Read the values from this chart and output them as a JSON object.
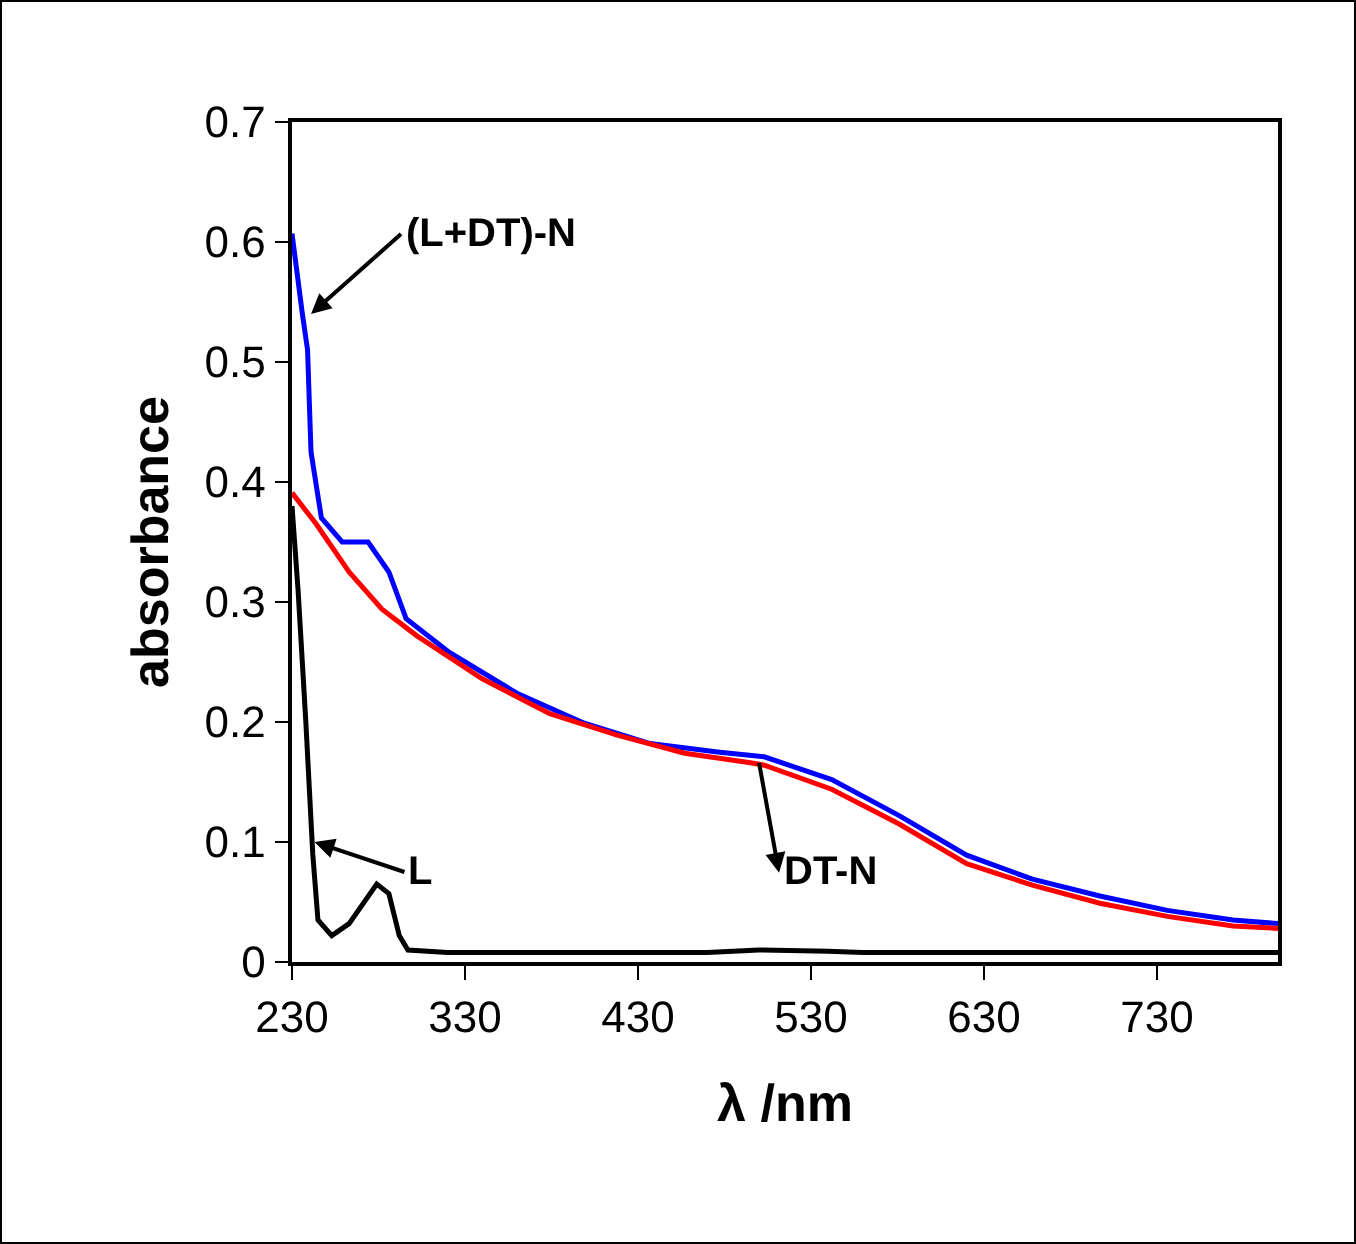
{
  "chart_data": {
    "type": "line",
    "xlabel": "λ /nm",
    "ylabel": "absorbance",
    "xlim": [
      230,
      800
    ],
    "xticks": [
      230,
      330,
      430,
      530,
      630,
      730
    ],
    "ylim": [
      0,
      0.7
    ],
    "yticks": [
      0,
      0.1,
      0.2,
      0.3,
      0.4,
      0.5,
      0.6,
      0.7
    ],
    "marker": "none",
    "line_style": "solid",
    "series": [
      {
        "color": "#0000ff",
        "x": [
          230,
          236,
          239,
          241,
          247,
          259,
          274,
          286,
          296,
          321,
          360,
          399,
          437,
          476,
          503,
          542,
          581,
          620,
          658,
          697,
          736,
          774,
          800
        ],
        "values": [
          0.607,
          0.54,
          0.51,
          0.425,
          0.37,
          0.35,
          0.35,
          0.325,
          0.286,
          0.258,
          0.224,
          0.199,
          0.182,
          0.175,
          0.171,
          0.152,
          0.122,
          0.089,
          0.069,
          0.055,
          0.043,
          0.035,
          0.032
        ]
      },
      {
        "color": "#ff0000",
        "x": [
          230,
          244,
          263,
          282,
          302,
          340,
          379,
          418,
          457,
          495,
          503,
          542,
          581,
          620,
          658,
          697,
          736,
          774,
          800
        ],
        "values": [
          0.391,
          0.365,
          0.325,
          0.294,
          0.272,
          0.236,
          0.207,
          0.189,
          0.174,
          0.166,
          0.164,
          0.144,
          0.115,
          0.082,
          0.064,
          0.049,
          0.038,
          0.03,
          0.028
        ]
      },
      {
        "color": "#000000",
        "x": [
          230,
          233.5,
          238,
          242,
          245,
          253,
          263,
          279,
          286,
          292,
          297,
          320,
          470,
          500,
          540,
          560,
          800
        ],
        "values": [
          0.38,
          0.31,
          0.2,
          0.09,
          0.035,
          0.022,
          0.032,
          0.065,
          0.057,
          0.022,
          0.01,
          0.008,
          0.008,
          0.01,
          0.009,
          0.008,
          0.008
        ]
      }
    ],
    "annotations": [
      {
        "text": "(L+DT)-N",
        "x": 241,
        "y": 0.54
      },
      {
        "text": "L",
        "x": 243,
        "y": 0.1
      },
      {
        "text": "DT-N",
        "x": 500,
        "y": 0.166
      }
    ]
  }
}
